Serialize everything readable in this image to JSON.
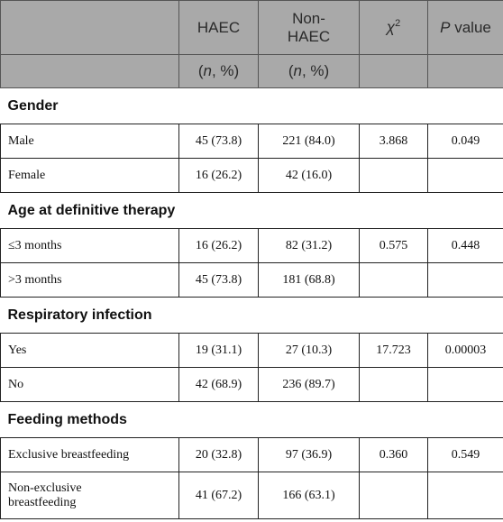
{
  "header": {
    "columns": [
      "HAEC",
      "Non-HAEC",
      {
        "symbol": "χ",
        "superscript": "2"
      },
      {
        "italic": "P",
        "text": "value"
      }
    ],
    "subheader": [
      {
        "open": "(",
        "italic": "n",
        "close": ", %)"
      },
      {
        "open": "(",
        "italic": "n",
        "close": ", %)"
      }
    ]
  },
  "sections": [
    {
      "title": "Gender",
      "rows": [
        [
          "Male",
          "45 (73.8)",
          "221 (84.0)",
          "3.868",
          "0.049"
        ],
        [
          "Female",
          "16 (26.2)",
          "42 (16.0)"
        ]
      ]
    },
    {
      "title": "Age at definitive therapy",
      "rows": [
        [
          "≤3 months",
          "16 (26.2)",
          "82 (31.2)",
          "0.575",
          "0.448"
        ],
        [
          ">3 months",
          "45 (73.8)",
          "181 (68.8)"
        ]
      ]
    },
    {
      "title": "Respiratory infection",
      "rows": [
        [
          "Yes",
          "19 (31.1)",
          "27 (10.3)",
          "17.723",
          "0.00003"
        ],
        [
          "No",
          "42 (68.9)",
          "236 (89.7)"
        ]
      ]
    },
    {
      "title": "Feeding methods",
      "rows": [
        [
          "Exclusive breastfeeding",
          "20 (32.8)",
          "97 (36.9)",
          "0.360",
          "0.549"
        ],
        [
          "Non-exclusive breastfeeding",
          "41 (67.2)",
          "166 (63.1)"
        ]
      ]
    }
  ]
}
